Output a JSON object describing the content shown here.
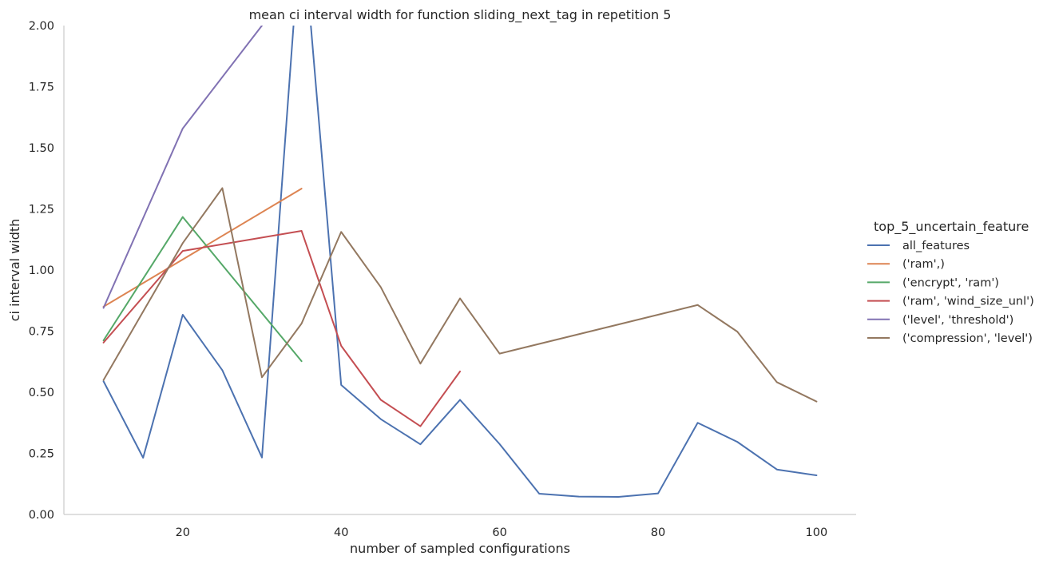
{
  "chart_data": {
    "type": "line",
    "title": "mean ci interval width for function sliding_next_tag in repetition 5",
    "xlabel": "number of sampled configurations",
    "ylabel": "ci interval width",
    "xlim": [
      5,
      105
    ],
    "ylim": [
      0,
      2.0
    ],
    "xticks": [
      20,
      40,
      60,
      80,
      100
    ],
    "yticks": [
      0.0,
      0.25,
      0.5,
      0.75,
      1.0,
      1.25,
      1.5,
      1.75,
      2.0
    ],
    "xtick_labels": [
      "20",
      "40",
      "60",
      "80",
      "100"
    ],
    "ytick_labels": [
      "0.00",
      "0.25",
      "0.50",
      "0.75",
      "1.00",
      "1.25",
      "1.50",
      "1.75",
      "2.00"
    ],
    "grid": false,
    "legend": {
      "title": "top_5_uncertain_feature",
      "placement": "right"
    },
    "series": [
      {
        "name": "all_features",
        "color": "#4c72b0",
        "x": [
          10,
          15,
          20,
          25,
          30,
          35,
          40,
          45,
          50,
          55,
          60,
          65,
          70,
          75,
          80,
          85,
          90,
          95,
          100
        ],
        "values": [
          0.545,
          0.232,
          0.817,
          0.59,
          0.233,
          2.45,
          0.53,
          0.39,
          0.287,
          0.469,
          0.288,
          0.085,
          0.073,
          0.072,
          0.086,
          0.375,
          0.297,
          0.184,
          0.16
        ]
      },
      {
        "name": "('ram',)",
        "color": "#dd8452",
        "x": [
          10,
          35
        ],
        "values": [
          0.85,
          1.333
        ]
      },
      {
        "name": "('encrypt', 'ram')",
        "color": "#55a868",
        "x": [
          10,
          20,
          35
        ],
        "values": [
          0.712,
          1.217,
          0.627
        ]
      },
      {
        "name": "('ram', 'wind_size_unl')",
        "color": "#c44e52",
        "x": [
          10,
          20,
          35,
          40,
          45,
          50,
          55
        ],
        "values": [
          0.703,
          1.078,
          1.16,
          0.69,
          0.469,
          0.361,
          0.585
        ]
      },
      {
        "name": "('level', 'threshold')",
        "color": "#8172b3",
        "x": [
          10,
          20,
          30
        ],
        "values": [
          0.845,
          1.579,
          2.0
        ]
      },
      {
        "name": "('compression', 'level')",
        "color": "#937860",
        "x": [
          10,
          20,
          25,
          30,
          35,
          40,
          45,
          50,
          55,
          60,
          85,
          90,
          95,
          100
        ],
        "values": [
          0.55,
          1.11,
          1.335,
          0.561,
          0.781,
          1.156,
          0.93,
          0.617,
          0.884,
          0.658,
          0.857,
          0.748,
          0.541,
          0.462
        ]
      }
    ]
  }
}
